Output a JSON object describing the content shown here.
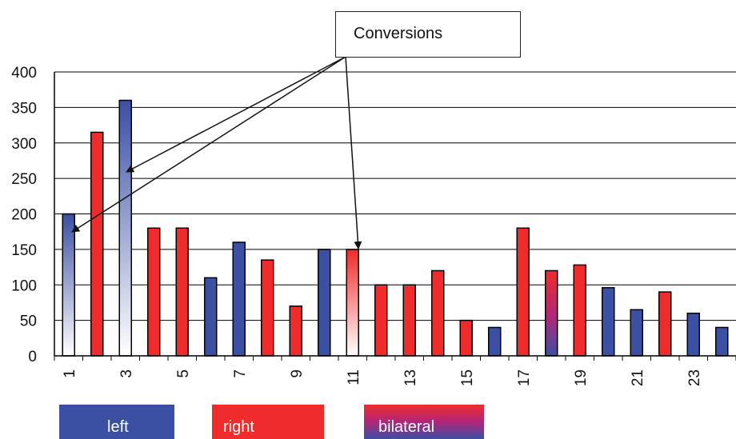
{
  "chart_data": {
    "type": "bar",
    "title": "",
    "xlabel": "",
    "ylabel": "",
    "ylim": [
      0,
      400
    ],
    "yticks": [
      0,
      50,
      100,
      150,
      200,
      250,
      300,
      350,
      400
    ],
    "x": [
      1,
      2,
      3,
      4,
      5,
      6,
      7,
      8,
      9,
      10,
      11,
      12,
      13,
      14,
      15,
      16,
      17,
      18,
      19,
      20,
      21,
      22,
      23,
      24
    ],
    "xtick_labels": [
      "1",
      "3",
      "5",
      "7",
      "9",
      "11",
      "13",
      "15",
      "17",
      "19",
      "21",
      "23"
    ],
    "values": [
      200,
      315,
      360,
      180,
      180,
      110,
      160,
      135,
      70,
      150,
      150,
      100,
      100,
      120,
      50,
      40,
      180,
      120,
      128,
      96,
      65,
      90,
      60,
      40
    ],
    "bar_types": [
      "left-conversion",
      "right",
      "left-conversion",
      "right",
      "right",
      "left",
      "left",
      "right",
      "right",
      "left",
      "right-conversion",
      "right",
      "right",
      "right",
      "right",
      "left",
      "right",
      "bilateral",
      "right",
      "left",
      "left",
      "right",
      "left",
      "left"
    ],
    "grid": true,
    "annotation": {
      "text": "Conversions",
      "targets": [
        1,
        3,
        11
      ]
    },
    "legend": {
      "placement": "bottom",
      "entries": [
        {
          "label": "left",
          "color": "#3b4fa3"
        },
        {
          "label": "right",
          "color": "#ef2b2b"
        },
        {
          "label": "bilateral",
          "color": "#8a3a8f"
        }
      ]
    },
    "colors": {
      "left": "#3b4fa3",
      "right": "#ef2b2b",
      "bilateral_top": "#ef2b2b",
      "bilateral_bottom": "#3b4fa3"
    }
  }
}
